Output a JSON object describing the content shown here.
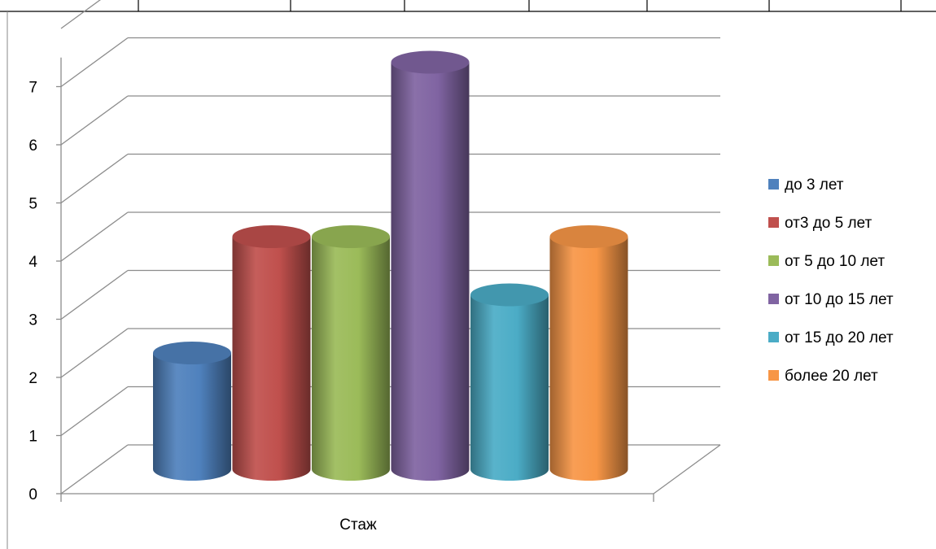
{
  "chart_data": {
    "type": "bar",
    "style": "3d-cylinder",
    "categories": [
      "Стаж"
    ],
    "series": [
      {
        "name": "до 3 лет",
        "values": [
          2
        ],
        "color": "#4F81BD"
      },
      {
        "name": "от3 до 5 лет",
        "values": [
          4
        ],
        "color": "#C0504D"
      },
      {
        "name": "от 5 до 10 лет",
        "values": [
          4
        ],
        "color": "#9BBB59"
      },
      {
        "name": "от 10 до 15 лет",
        "values": [
          7
        ],
        "color": "#8064A2"
      },
      {
        "name": "от 15 до 20 лет",
        "values": [
          3
        ],
        "color": "#4BACC6"
      },
      {
        "name": "более 20 лет",
        "values": [
          4
        ],
        "color": "#F79646"
      }
    ],
    "yticks": [
      "0",
      "1",
      "2",
      "3",
      "4",
      "5",
      "6",
      "7"
    ],
    "ylim": [
      0,
      8
    ],
    "grid": true,
    "legend_position": "right"
  }
}
